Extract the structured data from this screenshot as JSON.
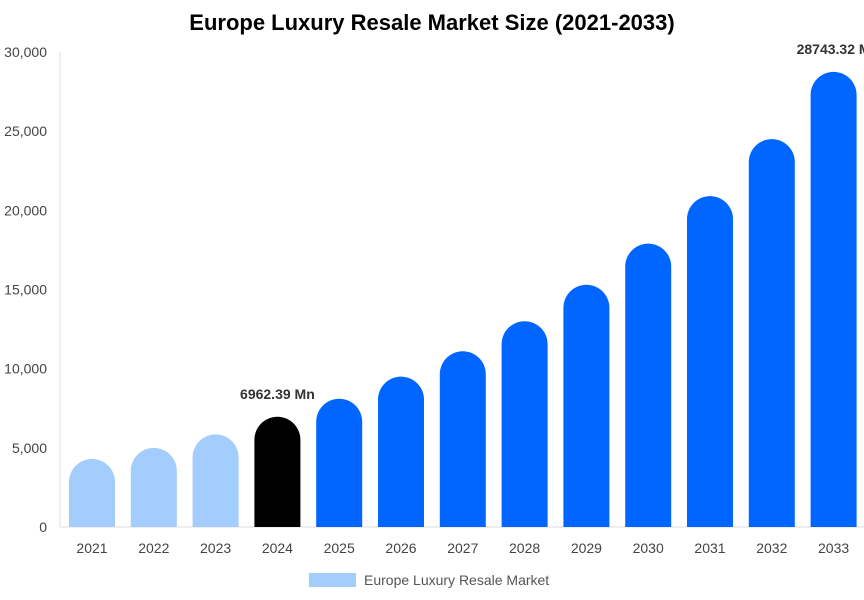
{
  "chart_data": {
    "type": "bar",
    "title": "Europe Luxury Resale Market Size (2021-2033)",
    "categories": [
      "2021",
      "2022",
      "2023",
      "2024",
      "2025",
      "2026",
      "2027",
      "2028",
      "2029",
      "2030",
      "2031",
      "2032",
      "2033"
    ],
    "series": [
      {
        "name": "Europe Luxury Resale Market",
        "values": [
          4300,
          5000,
          5850,
          6962.39,
          8100,
          9500,
          11100,
          13000,
          15300,
          17900,
          20900,
          24500,
          28743.32
        ]
      }
    ],
    "data_labels": [
      {
        "category": "2024",
        "text": "6962.39 Mn"
      },
      {
        "category": "2033",
        "text": "28743.32 M"
      }
    ],
    "ylim": [
      0,
      30000
    ],
    "yticks": [
      0,
      5000,
      10000,
      15000,
      20000,
      25000,
      30000
    ],
    "ytick_labels": [
      "0",
      "5,000",
      "10,000",
      "15,000",
      "20,000",
      "25,000",
      "30,000"
    ],
    "xlabel": "",
    "ylabel": "",
    "grid": false,
    "legend_position": "bottom",
    "colors": {
      "historical": "#a3cdfc",
      "current": "#000000",
      "forecast": "#0066ff",
      "legend_swatch": "#a3cdfc",
      "axis": "#dddddd"
    },
    "color_groups": {
      "historical": [
        "2021",
        "2022",
        "2023"
      ],
      "current": [
        "2024"
      ],
      "forecast": [
        "2025",
        "2026",
        "2027",
        "2028",
        "2029",
        "2030",
        "2031",
        "2032",
        "2033"
      ]
    }
  }
}
